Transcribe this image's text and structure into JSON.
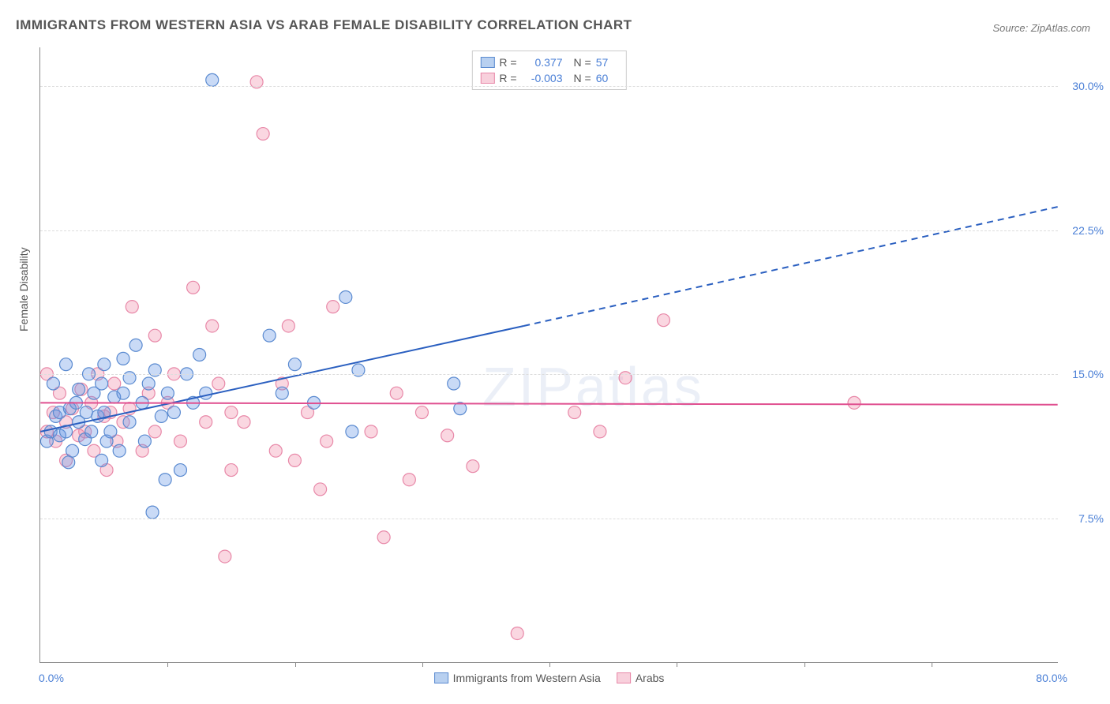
{
  "title": "IMMIGRANTS FROM WESTERN ASIA VS ARAB FEMALE DISABILITY CORRELATION CHART",
  "source": "Source: ZipAtlas.com",
  "watermark": "ZIPatlas",
  "ylabel": "Female Disability",
  "chart": {
    "type": "scatter",
    "xlim": [
      0,
      80
    ],
    "ylim": [
      0,
      32
    ],
    "x_label_min": "0.0%",
    "x_label_max": "80.0%",
    "y_ticks": [
      7.5,
      15.0,
      22.5,
      30.0
    ],
    "y_tick_labels": [
      "7.5%",
      "15.0%",
      "22.5%",
      "30.0%"
    ],
    "x_ticks": [
      10,
      20,
      30,
      40,
      50,
      60,
      70
    ],
    "grid_color": "#dddddd",
    "axis_color": "#888888",
    "background_color": "#ffffff",
    "marker_radius": 8,
    "marker_opacity": 0.55,
    "marker_stroke_width": 1.2,
    "line_width": 2
  },
  "series": [
    {
      "name": "Immigrants from Western Asia",
      "color_fill": "rgba(100,150,230,0.35)",
      "color_stroke": "#5a8ad0",
      "trend_color": "#2a5fc0",
      "swatch_fill": "#b8d0f0",
      "swatch_border": "#5a8ad0",
      "R": "0.377",
      "N": "57",
      "trend_solid": {
        "x1": 0,
        "y1": 12.0,
        "x2": 38,
        "y2": 17.5
      },
      "trend_dash": {
        "x1": 38,
        "y1": 17.5,
        "x2": 80,
        "y2": 23.7
      },
      "points": [
        [
          0.5,
          11.5
        ],
        [
          0.8,
          12.0
        ],
        [
          1.0,
          14.5
        ],
        [
          1.2,
          12.8
        ],
        [
          1.5,
          11.8
        ],
        [
          1.5,
          13.0
        ],
        [
          2.0,
          12.0
        ],
        [
          2.0,
          15.5
        ],
        [
          2.2,
          10.4
        ],
        [
          2.3,
          13.2
        ],
        [
          2.5,
          11.0
        ],
        [
          2.8,
          13.5
        ],
        [
          3.0,
          12.5
        ],
        [
          3.0,
          14.2
        ],
        [
          3.5,
          11.6
        ],
        [
          3.6,
          13.0
        ],
        [
          3.8,
          15.0
        ],
        [
          4.0,
          12.0
        ],
        [
          4.2,
          14.0
        ],
        [
          4.5,
          12.8
        ],
        [
          4.8,
          10.5
        ],
        [
          4.8,
          14.5
        ],
        [
          5.0,
          13.0
        ],
        [
          5.0,
          15.5
        ],
        [
          5.2,
          11.5
        ],
        [
          5.5,
          12.0
        ],
        [
          5.8,
          13.8
        ],
        [
          6.2,
          11.0
        ],
        [
          6.5,
          14.0
        ],
        [
          6.5,
          15.8
        ],
        [
          7.0,
          12.5
        ],
        [
          7.0,
          14.8
        ],
        [
          7.5,
          16.5
        ],
        [
          9.8,
          9.5
        ],
        [
          8.0,
          13.5
        ],
        [
          8.2,
          11.5
        ],
        [
          8.5,
          14.5
        ],
        [
          8.8,
          7.8
        ],
        [
          9.0,
          15.2
        ],
        [
          9.5,
          12.8
        ],
        [
          10.0,
          14.0
        ],
        [
          10.5,
          13.0
        ],
        [
          11.0,
          10.0
        ],
        [
          11.5,
          15.0
        ],
        [
          12.0,
          13.5
        ],
        [
          12.5,
          16.0
        ],
        [
          13.0,
          14.0
        ],
        [
          13.5,
          30.3
        ],
        [
          18.0,
          17.0
        ],
        [
          19.0,
          14.0
        ],
        [
          20.0,
          15.5
        ],
        [
          21.5,
          13.5
        ],
        [
          24.0,
          19.0
        ],
        [
          25.0,
          15.2
        ],
        [
          32.5,
          14.5
        ],
        [
          33.0,
          13.2
        ],
        [
          24.5,
          12.0
        ]
      ]
    },
    {
      "name": "Arabs",
      "color_fill": "rgba(240,140,170,0.35)",
      "color_stroke": "#e888a8",
      "trend_color": "#e05090",
      "swatch_fill": "#f8d0dc",
      "swatch_border": "#e888a8",
      "R": "-0.003",
      "N": "60",
      "trend_solid": {
        "x1": 0,
        "y1": 13.5,
        "x2": 80,
        "y2": 13.4
      },
      "trend_dash": null,
      "points": [
        [
          0.5,
          15.0
        ],
        [
          0.5,
          12.0
        ],
        [
          1.0,
          13.0
        ],
        [
          1.2,
          11.5
        ],
        [
          1.5,
          14.0
        ],
        [
          2.0,
          12.5
        ],
        [
          2.0,
          10.5
        ],
        [
          2.5,
          13.2
        ],
        [
          3.0,
          11.8
        ],
        [
          3.2,
          14.2
        ],
        [
          3.5,
          12.0
        ],
        [
          4.0,
          13.5
        ],
        [
          4.2,
          11.0
        ],
        [
          4.5,
          15.0
        ],
        [
          5.0,
          12.8
        ],
        [
          5.2,
          10.0
        ],
        [
          5.5,
          13.0
        ],
        [
          5.8,
          14.5
        ],
        [
          6.0,
          11.5
        ],
        [
          6.5,
          12.5
        ],
        [
          7.0,
          13.2
        ],
        [
          7.2,
          18.5
        ],
        [
          9.0,
          17.0
        ],
        [
          8.0,
          11.0
        ],
        [
          8.5,
          14.0
        ],
        [
          9.0,
          12.0
        ],
        [
          10.0,
          13.5
        ],
        [
          10.5,
          15.0
        ],
        [
          11.0,
          11.5
        ],
        [
          12.0,
          19.5
        ],
        [
          13.0,
          12.5
        ],
        [
          13.5,
          17.5
        ],
        [
          14.0,
          14.5
        ],
        [
          15.0,
          13.0
        ],
        [
          14.5,
          5.5
        ],
        [
          15.0,
          10.0
        ],
        [
          16.0,
          12.5
        ],
        [
          17.0,
          30.2
        ],
        [
          17.5,
          27.5
        ],
        [
          18.5,
          11.0
        ],
        [
          19.0,
          14.5
        ],
        [
          19.5,
          17.5
        ],
        [
          20.0,
          10.5
        ],
        [
          21.0,
          13.0
        ],
        [
          22.0,
          9.0
        ],
        [
          22.5,
          11.5
        ],
        [
          23.0,
          18.5
        ],
        [
          26.0,
          12.0
        ],
        [
          27.0,
          6.5
        ],
        [
          28.0,
          14.0
        ],
        [
          29.0,
          9.5
        ],
        [
          30.0,
          13.0
        ],
        [
          32.0,
          11.8
        ],
        [
          34.0,
          10.2
        ],
        [
          37.5,
          1.5
        ],
        [
          42.0,
          13.0
        ],
        [
          44.0,
          12.0
        ],
        [
          46.0,
          14.8
        ],
        [
          49.0,
          17.8
        ],
        [
          64.0,
          13.5
        ]
      ]
    }
  ],
  "bottom_legend": [
    {
      "label": "Immigrants from Western Asia",
      "swatch_fill": "#b8d0f0",
      "swatch_border": "#5a8ad0"
    },
    {
      "label": "Arabs",
      "swatch_fill": "#f8d0dc",
      "swatch_border": "#e888a8"
    }
  ]
}
